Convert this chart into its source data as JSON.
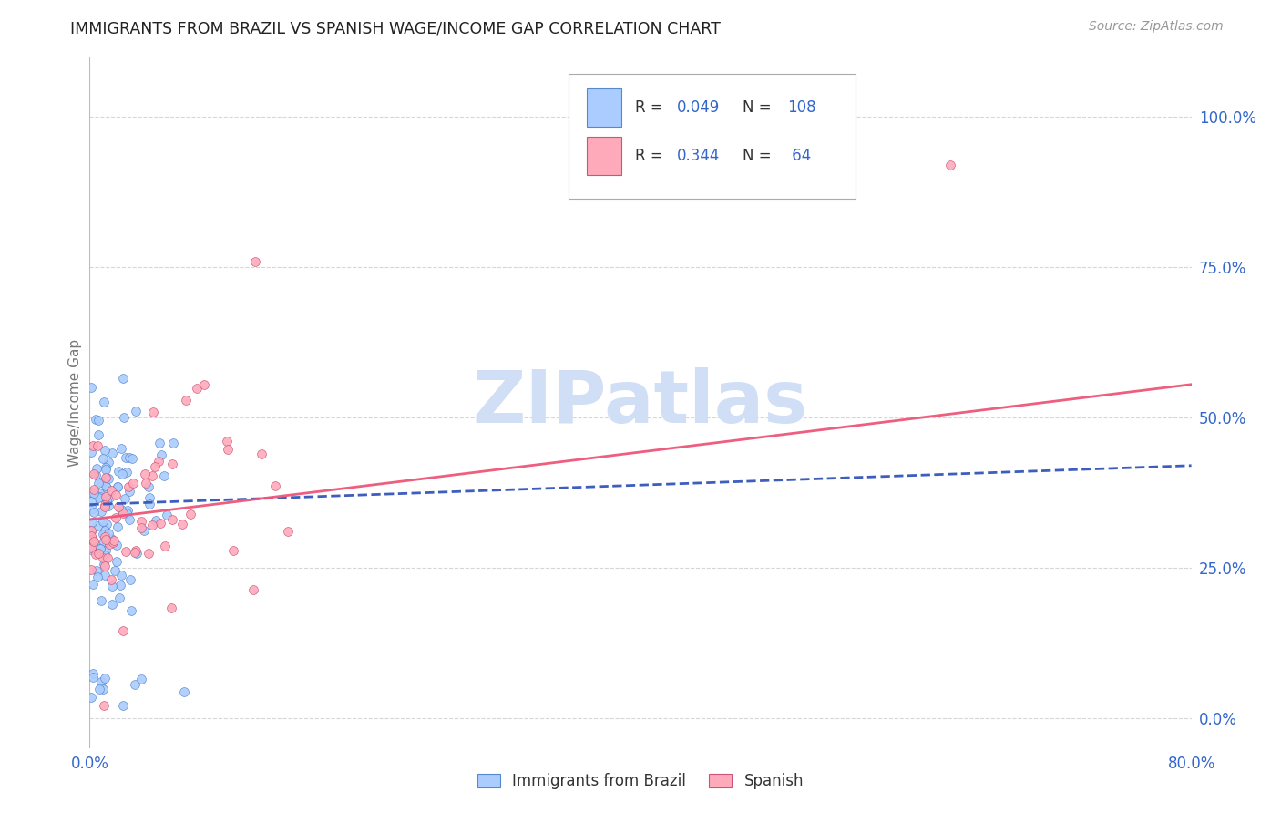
{
  "title": "IMMIGRANTS FROM BRAZIL VS SPANISH WAGE/INCOME GAP CORRELATION CHART",
  "source": "Source: ZipAtlas.com",
  "ylabel": "Wage/Income Gap",
  "xlim": [
    0.0,
    0.8
  ],
  "ylim": [
    -0.05,
    1.1
  ],
  "yticks": [
    0.0,
    0.25,
    0.5,
    0.75,
    1.0
  ],
  "ytick_labels": [
    "0.0%",
    "25.0%",
    "50.0%",
    "75.0%",
    "100.0%"
  ],
  "xticks": [
    0.0,
    0.2,
    0.4,
    0.6,
    0.8
  ],
  "xtick_labels": [
    "0.0%",
    "",
    "",
    "",
    "80.0%"
  ],
  "brazil_R": 0.049,
  "brazil_N": 108,
  "spanish_R": 0.344,
  "spanish_N": 64,
  "brazil_color": "#aaccff",
  "brazil_edge_color": "#5588cc",
  "spanish_color": "#ffaabb",
  "spanish_edge_color": "#cc5577",
  "brazil_line_color": "#3355bb",
  "spanish_line_color": "#ee5577",
  "legend_color": "#3366cc",
  "watermark_text": "ZIPatlas",
  "watermark_color": "#d0dff5",
  "background_color": "#ffffff",
  "grid_color": "#cccccc",
  "title_color": "#222222",
  "brazil_line_start_y": 0.355,
  "brazil_line_end_y": 0.42,
  "spanish_line_start_y": 0.33,
  "spanish_line_end_y": 0.555
}
